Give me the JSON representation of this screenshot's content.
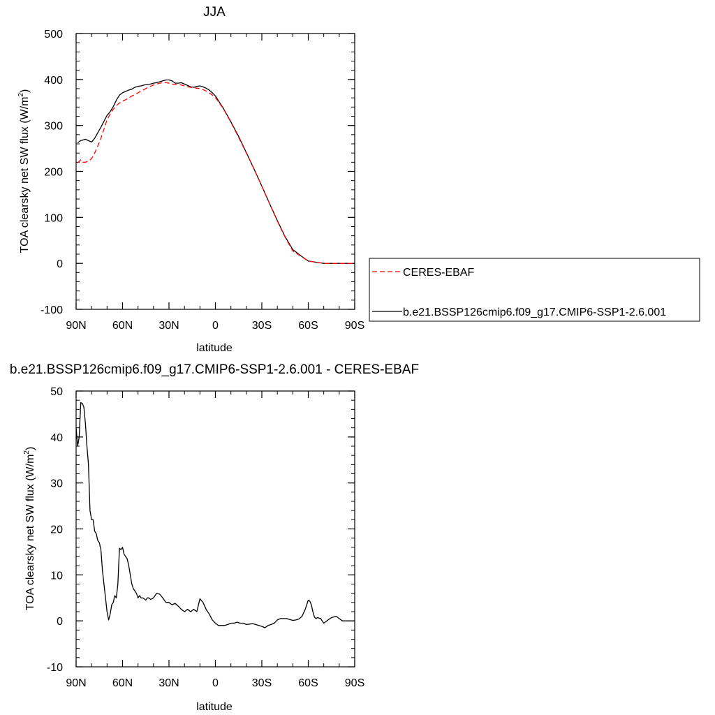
{
  "chart_data": [
    {
      "type": "line",
      "title": "JJA",
      "xlabel": "latitude",
      "ylabel": "TOA clearsky net SW flux (W/m",
      "ylabel_sup": "2",
      "ylabel_close": ")",
      "xlim": [
        -90,
        90
      ],
      "ylim": [
        -100,
        500
      ],
      "x_ticks": [
        -90,
        -60,
        -30,
        0,
        30,
        60,
        90
      ],
      "x_tick_labels": [
        "90N",
        "60N",
        "30N",
        "0",
        "30S",
        "60S",
        "90S"
      ],
      "y_ticks": [
        -100,
        0,
        100,
        200,
        300,
        400,
        500
      ],
      "y_tick_labels": [
        "-100",
        "0",
        "100",
        "200",
        "300",
        "400",
        "500"
      ],
      "legend": {
        "position": "right",
        "entries": [
          "CERES-EBAF",
          "b.e21.BSSP126cmip6.f09_g17.CMIP6-SSP1-2.6.001"
        ]
      },
      "series": [
        {
          "name": "CERES-EBAF",
          "color": "#ff0000",
          "dash": "dashed",
          "x": [
            -89,
            -88,
            -87,
            -86,
            -84,
            -82,
            -80,
            -78,
            -76,
            -74,
            -72,
            -70,
            -68,
            -66,
            -64,
            -62,
            -60,
            -58,
            -56,
            -54,
            -52,
            -50,
            -48,
            -46,
            -44,
            -42,
            -40,
            -38,
            -36,
            -34,
            -32,
            -30,
            -28,
            -26,
            -24,
            -22,
            -20,
            -18,
            -16,
            -14,
            -12,
            -10,
            -8,
            -6,
            -4,
            -2,
            0,
            5,
            10,
            15,
            20,
            25,
            30,
            35,
            40,
            45,
            50,
            55,
            60,
            62,
            64,
            66,
            68,
            70,
            72,
            75,
            80,
            85,
            90
          ],
          "y": [
            218,
            222,
            225,
            220,
            220,
            222,
            228,
            240,
            255,
            272,
            292,
            312,
            325,
            335,
            343,
            349,
            353,
            356,
            360,
            364,
            367,
            371,
            375,
            378,
            382,
            385,
            388,
            390,
            392,
            393,
            393,
            392,
            390,
            389,
            389,
            388,
            386,
            384,
            383,
            382,
            381,
            380,
            378,
            375,
            371,
            366,
            361,
            337,
            307,
            274,
            240,
            205,
            168,
            130,
            92,
            57,
            27,
            16,
            5,
            4,
            3,
            2,
            1,
            0,
            0,
            0,
            0,
            0,
            0
          ]
        },
        {
          "name": "b.e21.BSSP126cmip6.f09_g17.CMIP6-SSP1-2.6.001",
          "color": "#000000",
          "dash": "solid",
          "x": [
            -89,
            -88,
            -87,
            -86,
            -84,
            -82,
            -80,
            -78,
            -76,
            -74,
            -72,
            -70,
            -68,
            -66,
            -64,
            -62,
            -60,
            -58,
            -56,
            -54,
            -52,
            -50,
            -48,
            -46,
            -44,
            -42,
            -40,
            -38,
            -36,
            -34,
            -32,
            -30,
            -28,
            -26,
            -24,
            -22,
            -20,
            -18,
            -16,
            -14,
            -12,
            -10,
            -8,
            -6,
            -4,
            -2,
            0,
            5,
            10,
            15,
            20,
            25,
            30,
            35,
            40,
            45,
            50,
            55,
            60,
            62,
            64,
            66,
            68,
            70,
            72,
            75,
            80,
            85,
            90
          ],
          "y": [
            262,
            265,
            267,
            268,
            270,
            267,
            264,
            272,
            284,
            296,
            309,
            322,
            330,
            341,
            355,
            366,
            371,
            374,
            377,
            379,
            383,
            385,
            386,
            388,
            389,
            390,
            392,
            393,
            395,
            397,
            399,
            399,
            397,
            392,
            392,
            393,
            390,
            387,
            384,
            383,
            385,
            386,
            384,
            381,
            377,
            371,
            364,
            338,
            308,
            276,
            241,
            205,
            168,
            130,
            93,
            58,
            30,
            17,
            5,
            4,
            3,
            2,
            1,
            0,
            0,
            0,
            0,
            0,
            0
          ]
        }
      ]
    },
    {
      "type": "line",
      "title": "b.e21.BSSP126cmip6.f09_g17.CMIP6-SSP1-2.6.001 - CERES-EBAF",
      "xlabel": "latitude",
      "ylabel": "TOA clearsky net SW flux (W/m",
      "ylabel_sup": "2",
      "ylabel_close": ")",
      "xlim": [
        -90,
        90
      ],
      "ylim": [
        -10,
        50
      ],
      "x_ticks": [
        -90,
        -60,
        -30,
        0,
        30,
        60,
        90
      ],
      "x_tick_labels": [
        "90N",
        "60N",
        "30N",
        "0",
        "30S",
        "60S",
        "90S"
      ],
      "y_ticks": [
        -10,
        0,
        10,
        20,
        30,
        40,
        50
      ],
      "y_tick_labels": [
        "-10",
        "0",
        "10",
        "20",
        "30",
        "40",
        "50"
      ],
      "series": [
        {
          "color": "#000000",
          "dash": "solid",
          "x": [
            -90,
            -89,
            -88,
            -87,
            -86,
            -85,
            -84,
            -83,
            -82,
            -81,
            -80,
            -79,
            -78,
            -77,
            -76,
            -75,
            -74,
            -73,
            -72,
            -71,
            -70,
            -69,
            -68,
            -67,
            -66,
            -65,
            -64,
            -63,
            -62,
            -61,
            -60,
            -59,
            -58,
            -57,
            -56,
            -55,
            -54,
            -53,
            -52,
            -51,
            -50,
            -49,
            -48,
            -47,
            -46,
            -45,
            -44,
            -43,
            -42,
            -41,
            -40,
            -38,
            -36,
            -34,
            -32,
            -30,
            -28,
            -26,
            -24,
            -22,
            -20,
            -18,
            -16,
            -14,
            -12,
            -10,
            -8,
            -6,
            -4,
            -2,
            0,
            2,
            4,
            6,
            8,
            10,
            12,
            14,
            16,
            18,
            20,
            22,
            24,
            26,
            28,
            30,
            32,
            34,
            36,
            38,
            40,
            42,
            44,
            46,
            48,
            50,
            52,
            54,
            56,
            58,
            60,
            61,
            62,
            63,
            64,
            65,
            66,
            67,
            68,
            70,
            72,
            74,
            75,
            76,
            78,
            80,
            82,
            85,
            88,
            90
          ],
          "y": [
            42,
            38,
            40,
            47.5,
            47.3,
            46.5,
            43,
            38,
            34,
            24,
            22,
            22,
            19.5,
            19,
            17.5,
            17,
            15.5,
            11,
            8,
            5,
            2,
            0.2,
            1.5,
            3.5,
            4,
            5.5,
            5,
            8,
            15.8,
            15.5,
            16,
            14.5,
            14,
            13.5,
            12,
            10,
            8,
            7,
            6.5,
            6,
            5,
            5.5,
            5,
            5,
            4.8,
            4.5,
            5,
            5,
            4.7,
            4.8,
            5,
            6,
            5.8,
            5,
            4,
            4,
            3.5,
            3.8,
            3.2,
            2.5,
            2,
            2.5,
            2,
            2.5,
            2,
            4.8,
            4,
            2.5,
            1.5,
            0.2,
            -0.5,
            -1,
            -1,
            -1,
            -0.8,
            -0.5,
            -0.5,
            -0.3,
            -0.5,
            -0.5,
            -0.8,
            -0.7,
            -0.6,
            -0.8,
            -1,
            -1.2,
            -1.5,
            -1,
            -0.8,
            -0.5,
            0.2,
            0.5,
            0.5,
            0.5,
            0.3,
            0.1,
            0.2,
            0.4,
            1,
            2.5,
            4.5,
            4.3,
            3.5,
            2,
            0.8,
            0.5,
            0.7,
            0.6,
            0.5,
            -0.5,
            0,
            0.5,
            0.7,
            0.8,
            1,
            0.5,
            0,
            0,
            0,
            0
          ]
        }
      ]
    }
  ]
}
